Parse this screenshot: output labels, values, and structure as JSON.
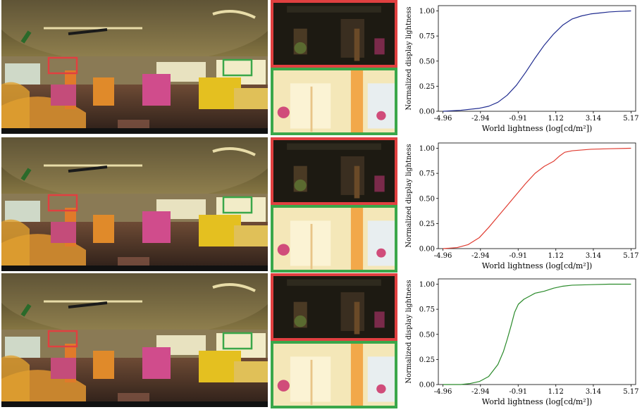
{
  "colors": {
    "row1_curve": "#1f2b8f",
    "row2_curve": "#e03c31",
    "row3_curve": "#2a8a2a",
    "red_box": "#e04040",
    "green_box": "#3aa74a"
  },
  "chart_data": [
    {
      "type": "line",
      "xlabel": "World lightness (log[cd/m²])",
      "ylabel": "Normalized display lightness",
      "x_ticks": [
        "-4.96",
        "-2.94",
        "-0.91",
        "1.12",
        "3.14",
        "5.17"
      ],
      "y_ticks": [
        "0.00",
        "0.25",
        "0.50",
        "0.75",
        "1.00"
      ],
      "xlim": [
        -4.96,
        5.17
      ],
      "ylim": [
        0,
        1
      ],
      "series": [
        {
          "x": [
            -4.96,
            -4.0,
            -3.0,
            -2.5,
            -2.0,
            -1.5,
            -1.0,
            -0.5,
            0.0,
            0.5,
            1.0,
            1.5,
            2.0,
            2.5,
            3.0,
            3.5,
            4.0,
            4.5,
            5.17
          ],
          "y": [
            0.0,
            0.01,
            0.03,
            0.05,
            0.09,
            0.16,
            0.26,
            0.39,
            0.53,
            0.66,
            0.77,
            0.86,
            0.92,
            0.95,
            0.97,
            0.98,
            0.99,
            0.995,
            1.0
          ]
        }
      ]
    },
    {
      "type": "line",
      "xlabel": "World lightness (log[cd/m²])",
      "ylabel": "Normalized display lightness",
      "x_ticks": [
        "-4.96",
        "-2.94",
        "-0.91",
        "1.12",
        "3.14",
        "5.17"
      ],
      "y_ticks": [
        "0.00",
        "0.25",
        "0.50",
        "0.75",
        "1.00"
      ],
      "xlim": [
        -4.96,
        5.17
      ],
      "ylim": [
        0,
        1
      ],
      "series": [
        {
          "x": [
            -4.96,
            -4.2,
            -3.6,
            -3.0,
            -2.5,
            -2.0,
            -1.5,
            -1.0,
            -0.5,
            0.0,
            0.5,
            1.0,
            1.3,
            1.6,
            2.0,
            3.0,
            4.0,
            5.17
          ],
          "y": [
            0.0,
            0.01,
            0.04,
            0.11,
            0.21,
            0.32,
            0.43,
            0.54,
            0.65,
            0.75,
            0.82,
            0.87,
            0.92,
            0.96,
            0.975,
            0.99,
            0.995,
            1.0
          ]
        }
      ]
    },
    {
      "type": "line",
      "xlabel": "World lightness (log[cd/m²])",
      "ylabel": "Normalized display lightness",
      "x_ticks": [
        "-4.96",
        "-2.94",
        "-0.91",
        "1.12",
        "3.14",
        "5.17"
      ],
      "y_ticks": [
        "0.00",
        "0.25",
        "0.50",
        "0.75",
        "1.00"
      ],
      "xlim": [
        -4.96,
        5.17
      ],
      "ylim": [
        0,
        1
      ],
      "series": [
        {
          "x": [
            -4.96,
            -4.0,
            -3.5,
            -3.0,
            -2.5,
            -2.0,
            -1.7,
            -1.5,
            -1.3,
            -1.1,
            -0.9,
            -0.6,
            -0.3,
            0.0,
            0.5,
            1.0,
            1.5,
            2.0,
            3.0,
            4.0,
            5.17
          ],
          "y": [
            0.0,
            0.0,
            0.01,
            0.03,
            0.08,
            0.2,
            0.33,
            0.45,
            0.58,
            0.72,
            0.8,
            0.85,
            0.88,
            0.91,
            0.93,
            0.96,
            0.98,
            0.99,
            0.995,
            1.0,
            1.0
          ]
        }
      ]
    }
  ]
}
